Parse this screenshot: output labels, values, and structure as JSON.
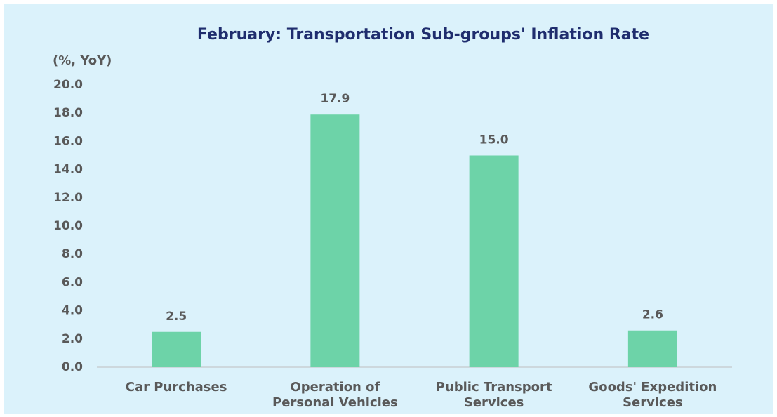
{
  "chart_data": {
    "type": "bar",
    "title": "February: Transportation Sub-groups' Inflation Rate",
    "y_label": "(%, YoY)",
    "categories": [
      "Car Purchases",
      "Operation of Personal Vehicles",
      "Public Transport Services",
      "Goods' Expedition Services"
    ],
    "values": [
      2.5,
      17.9,
      15.0,
      2.6
    ],
    "value_labels": [
      "2.5",
      "17.9",
      "15.0",
      "2.6"
    ],
    "color": "#6dd3a8",
    "ylim": [
      0,
      20
    ],
    "yticks": [
      {
        "value": 0,
        "label": "0.0"
      },
      {
        "value": 2,
        "label": "2.0"
      },
      {
        "value": 4,
        "label": "4.0"
      },
      {
        "value": 6,
        "label": "6.0"
      },
      {
        "value": 8,
        "label": "8.0"
      },
      {
        "value": 10,
        "label": "10.0"
      },
      {
        "value": 12,
        "label": "12.0"
      },
      {
        "value": 14,
        "label": "14.0"
      },
      {
        "value": 16,
        "label": "16.0"
      },
      {
        "value": 18,
        "label": "18.0"
      },
      {
        "value": 20,
        "label": "20.0"
      }
    ],
    "grid": false
  }
}
